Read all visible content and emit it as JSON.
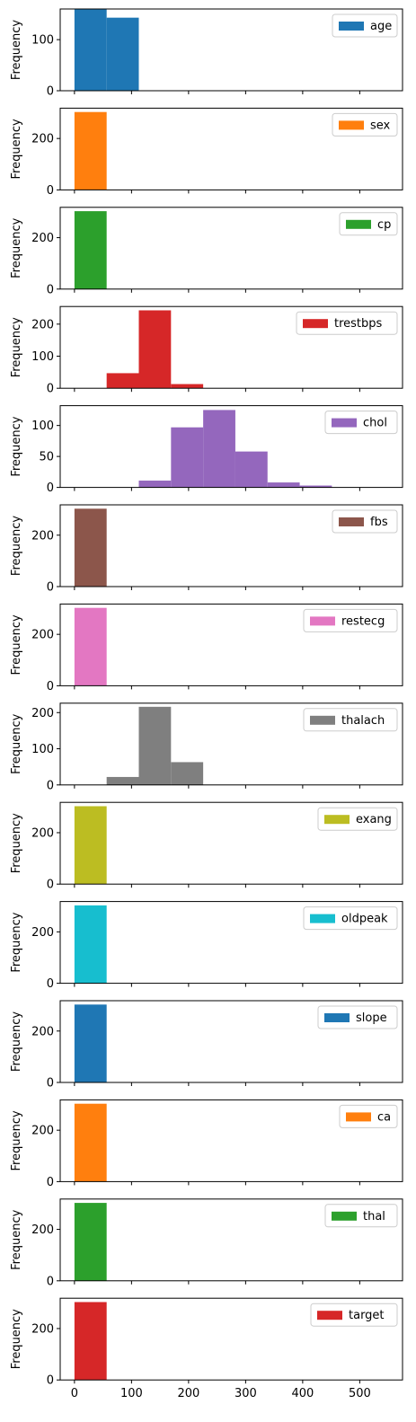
{
  "chart_data": {
    "type": "bar",
    "subplot_type": "histogram",
    "shared_x_axis": true,
    "xlim": [
      -25,
      575
    ],
    "x_ticks": [
      0,
      100,
      200,
      300,
      400,
      500
    ],
    "x_tick_labels": [
      "0",
      "100",
      "200",
      "300",
      "400",
      "500"
    ],
    "ylabel": "Frequency",
    "legend_position": "top-right",
    "bin_edges": [
      0.0,
      56.4,
      112.8,
      169.2,
      225.6,
      282.0,
      338.4,
      394.8,
      451.2,
      507.6,
      564.0
    ],
    "panels": [
      {
        "name": "age",
        "color": "#1f77b4",
        "ylim": [
          0,
          160
        ],
        "y_ticks": [
          0,
          100
        ],
        "y_tick_labels": [
          "0",
          "100"
        ],
        "values": [
          160,
          143,
          0,
          0,
          0,
          0,
          0,
          0,
          0,
          0
        ]
      },
      {
        "name": "sex",
        "color": "#ff7f0e",
        "ylim": [
          0,
          318
        ],
        "y_ticks": [
          0,
          200
        ],
        "y_tick_labels": [
          "0",
          "200"
        ],
        "values": [
          303,
          0,
          0,
          0,
          0,
          0,
          0,
          0,
          0,
          0
        ]
      },
      {
        "name": "cp",
        "color": "#2ca02c",
        "ylim": [
          0,
          318
        ],
        "y_ticks": [
          0,
          200
        ],
        "y_tick_labels": [
          "0",
          "200"
        ],
        "values": [
          303,
          0,
          0,
          0,
          0,
          0,
          0,
          0,
          0,
          0
        ]
      },
      {
        "name": "trestbps",
        "color": "#d62728",
        "ylim": [
          0,
          255
        ],
        "y_ticks": [
          0,
          100,
          200
        ],
        "y_tick_labels": [
          "0",
          "100",
          "200"
        ],
        "values": [
          0,
          47,
          243,
          13,
          0,
          0,
          0,
          0,
          0,
          0
        ]
      },
      {
        "name": "chol",
        "color": "#9467bd",
        "ylim": [
          0,
          132
        ],
        "y_ticks": [
          0,
          50,
          100
        ],
        "y_tick_labels": [
          "0",
          "50",
          "100"
        ],
        "values": [
          0,
          0,
          11,
          97,
          125,
          58,
          8,
          3,
          0,
          0
        ]
      },
      {
        "name": "fbs",
        "color": "#8c564b",
        "ylim": [
          0,
          318
        ],
        "y_ticks": [
          0,
          200
        ],
        "y_tick_labels": [
          "0",
          "200"
        ],
        "values": [
          303,
          0,
          0,
          0,
          0,
          0,
          0,
          0,
          0,
          0
        ]
      },
      {
        "name": "restecg",
        "color": "#e377c2",
        "ylim": [
          0,
          318
        ],
        "y_ticks": [
          0,
          200
        ],
        "y_tick_labels": [
          "0",
          "200"
        ],
        "values": [
          303,
          0,
          0,
          0,
          0,
          0,
          0,
          0,
          0,
          0
        ]
      },
      {
        "name": "thalach",
        "color": "#7f7f7f",
        "ylim": [
          0,
          226
        ],
        "y_ticks": [
          0,
          100,
          200
        ],
        "y_tick_labels": [
          "0",
          "100",
          "200"
        ],
        "values": [
          0,
          22,
          216,
          63,
          0,
          0,
          0,
          0,
          0,
          0
        ]
      },
      {
        "name": "exang",
        "color": "#bcbd22",
        "ylim": [
          0,
          318
        ],
        "y_ticks": [
          0,
          200
        ],
        "y_tick_labels": [
          "0",
          "200"
        ],
        "values": [
          303,
          0,
          0,
          0,
          0,
          0,
          0,
          0,
          0,
          0
        ]
      },
      {
        "name": "oldpeak",
        "color": "#17becf",
        "ylim": [
          0,
          318
        ],
        "y_ticks": [
          0,
          200
        ],
        "y_tick_labels": [
          "0",
          "200"
        ],
        "values": [
          303,
          0,
          0,
          0,
          0,
          0,
          0,
          0,
          0,
          0
        ]
      },
      {
        "name": "slope",
        "color": "#1f77b4",
        "ylim": [
          0,
          318
        ],
        "y_ticks": [
          0,
          200
        ],
        "y_tick_labels": [
          "0",
          "200"
        ],
        "values": [
          303,
          0,
          0,
          0,
          0,
          0,
          0,
          0,
          0,
          0
        ]
      },
      {
        "name": "ca",
        "color": "#ff7f0e",
        "ylim": [
          0,
          318
        ],
        "y_ticks": [
          0,
          200
        ],
        "y_tick_labels": [
          "0",
          "200"
        ],
        "values": [
          303,
          0,
          0,
          0,
          0,
          0,
          0,
          0,
          0,
          0
        ]
      },
      {
        "name": "thal",
        "color": "#2ca02c",
        "ylim": [
          0,
          318
        ],
        "y_ticks": [
          0,
          200
        ],
        "y_tick_labels": [
          "0",
          "200"
        ],
        "values": [
          303,
          0,
          0,
          0,
          0,
          0,
          0,
          0,
          0,
          0
        ]
      },
      {
        "name": "target",
        "color": "#d62728",
        "ylim": [
          0,
          318
        ],
        "y_ticks": [
          0,
          200
        ],
        "y_tick_labels": [
          "0",
          "200"
        ],
        "values": [
          303,
          0,
          0,
          0,
          0,
          0,
          0,
          0,
          0,
          0
        ]
      }
    ]
  }
}
